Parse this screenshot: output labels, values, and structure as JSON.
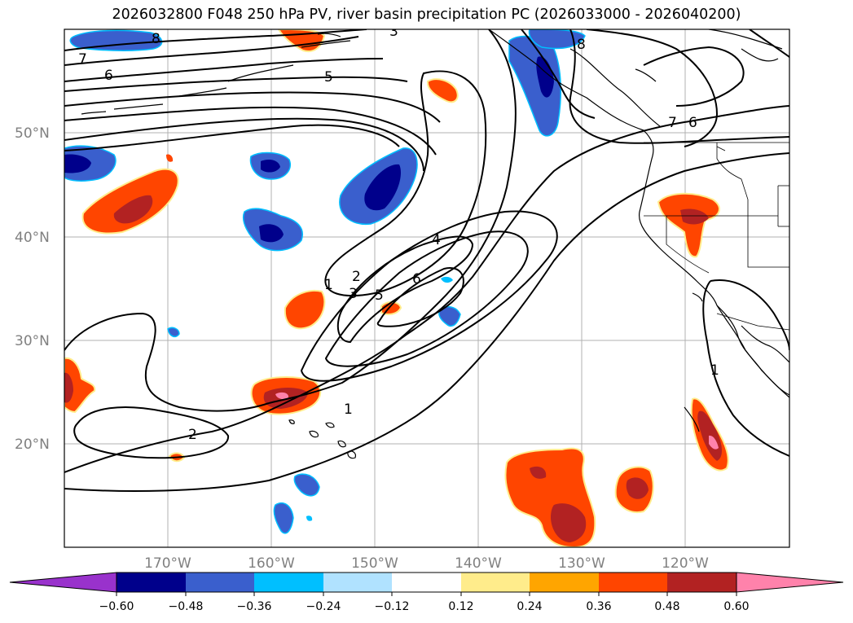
{
  "title": "2026032800 F048 250 hPa PV, river basin precipitation PC (2026033000 - 2026040200)",
  "map": {
    "lat_labels": [
      "50°N",
      "40°N",
      "30°N",
      "20°N"
    ],
    "lon_labels": [
      "170°W",
      "160°W",
      "150°W",
      "140°W",
      "130°W",
      "120°W"
    ],
    "contour_labels": [
      "8",
      "7",
      "6",
      "5",
      "3",
      "8",
      "7",
      "6",
      "4",
      "1",
      "2",
      "3",
      "5",
      "6",
      "1",
      "1",
      "2"
    ]
  },
  "colorbar": {
    "colors": [
      "#9932cc",
      "#00008b",
      "#3a5fcd",
      "#00bfff",
      "#b0e2ff",
      "#ffffff",
      "#ffec8b",
      "#ffa500",
      "#ff4500",
      "#b22222",
      "#ff82ab"
    ],
    "tick_labels": [
      "−0.60",
      "−0.48",
      "−0.36",
      "−0.24",
      "−0.12",
      "0.12",
      "0.24",
      "0.36",
      "0.48",
      "0.60"
    ]
  }
}
